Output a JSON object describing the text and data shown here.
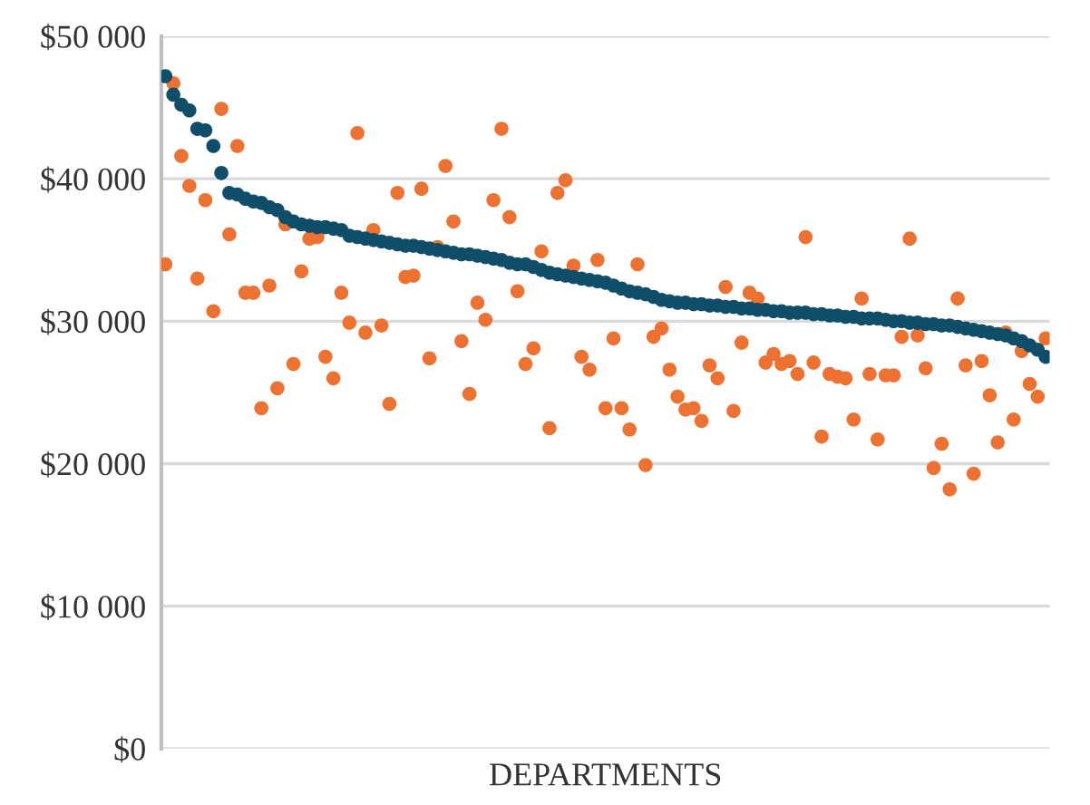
{
  "chart_data": {
    "type": "scatter",
    "xlabel": "DEPARTMENTS",
    "categories": [
      null,
      null,
      null,
      null,
      null,
      null,
      null,
      null,
      null,
      null,
      null,
      null,
      null,
      null,
      null,
      null,
      null,
      null,
      null,
      null,
      null,
      null,
      null,
      null,
      null,
      null,
      null,
      null,
      null,
      null,
      null,
      null,
      null,
      null,
      null,
      null,
      null,
      null,
      null,
      null,
      null,
      null,
      null,
      null,
      null,
      null,
      null,
      null,
      null,
      null,
      null,
      null,
      null,
      null,
      null,
      null,
      null,
      null,
      null,
      null,
      null,
      null,
      null,
      null,
      null,
      null,
      null,
      null,
      null,
      null,
      null,
      null,
      null,
      null,
      null,
      null,
      null,
      null,
      null,
      null,
      null,
      null,
      null,
      null,
      null,
      null,
      null,
      null,
      null,
      null,
      null,
      null,
      null,
      null,
      null,
      null,
      null,
      null,
      null,
      null,
      null,
      null,
      null,
      null,
      null,
      null,
      null,
      null,
      null,
      null,
      null
    ],
    "series": [
      {
        "color": "#0f4d68",
        "values": [
          47200,
          45900,
          45200,
          44800,
          43500,
          43400,
          42300,
          40400,
          39000,
          38900,
          38600,
          38400,
          38300,
          38000,
          37800,
          37300,
          37000,
          36800,
          36700,
          36600,
          36600,
          36500,
          36400,
          36000,
          35900,
          35800,
          35700,
          35600,
          35500,
          35400,
          35300,
          35300,
          35200,
          35100,
          35000,
          34900,
          34800,
          34700,
          34700,
          34600,
          34500,
          34400,
          34300,
          34100,
          34000,
          34000,
          33800,
          33600,
          33400,
          33300,
          33200,
          33100,
          33000,
          32900,
          32800,
          32700,
          32500,
          32300,
          32100,
          32000,
          31900,
          31700,
          31500,
          31400,
          31300,
          31300,
          31200,
          31200,
          31100,
          31100,
          31000,
          31000,
          30900,
          30900,
          30800,
          30800,
          30700,
          30700,
          30600,
          30600,
          30600,
          30500,
          30500,
          30400,
          30400,
          30300,
          30300,
          30200,
          30200,
          30200,
          30100,
          30000,
          30000,
          29900,
          29900,
          29800,
          29800,
          29700,
          29700,
          29600,
          29500,
          29400,
          29300,
          29200,
          29100,
          29000,
          28800,
          28600,
          28300,
          28000,
          27500
        ]
      },
      {
        "color": "#ed7131",
        "values": [
          34000,
          46700,
          41600,
          39500,
          33000,
          38500,
          30700,
          44900,
          36100,
          42300,
          32000,
          32000,
          23900,
          32500,
          25300,
          36800,
          27000,
          33500,
          35800,
          35900,
          27500,
          26000,
          32000,
          29900,
          43200,
          29200,
          36400,
          29700,
          24200,
          39000,
          33100,
          33200,
          39300,
          27400,
          35200,
          40900,
          37000,
          28600,
          24900,
          31300,
          30100,
          38500,
          43500,
          37300,
          32100,
          27000,
          28100,
          34900,
          22500,
          39000,
          39900,
          33900,
          27500,
          26600,
          34300,
          23900,
          28800,
          23900,
          22400,
          34000,
          19900,
          28900,
          29500,
          26600,
          24700,
          23800,
          23900,
          23000,
          26900,
          26000,
          32400,
          23700,
          28500,
          32000,
          31600,
          27100,
          27700,
          27000,
          27200,
          26300,
          35900,
          27100,
          21900,
          26300,
          26100,
          26000,
          23100,
          31600,
          26300,
          21700,
          26200,
          26200,
          28900,
          35800,
          29000,
          26700,
          19700,
          21400,
          18200,
          31600,
          26900,
          19300,
          27200,
          24800,
          21500,
          29200,
          23100,
          27900,
          25600,
          24700,
          28800
        ]
      }
    ],
    "ylim": [
      0,
      50000
    ],
    "yticks": [
      {
        "value": 0,
        "label": "$0"
      },
      {
        "value": 10000,
        "label": "$10 000"
      },
      {
        "value": 20000,
        "label": "$20 000"
      },
      {
        "value": 30000,
        "label": "$30 000"
      },
      {
        "value": 40000,
        "label": "$40 000"
      },
      {
        "value": 50000,
        "label": "$50 000"
      }
    ],
    "grid": "y",
    "marker": "circle"
  }
}
